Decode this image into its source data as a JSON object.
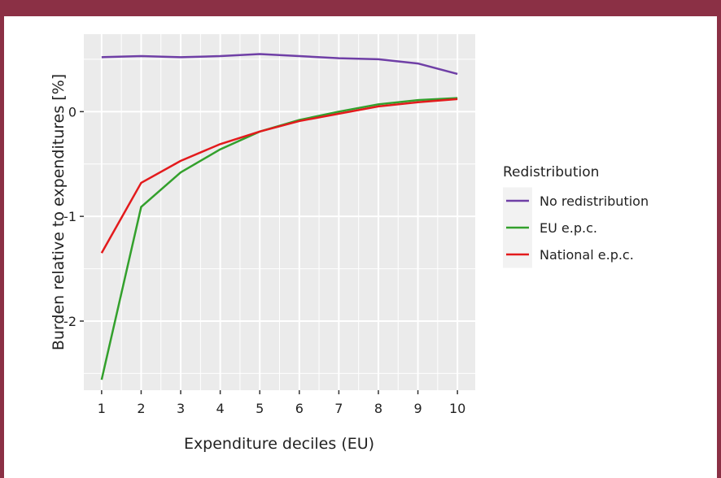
{
  "chart_data": {
    "type": "line",
    "x_label": "Expenditure deciles (EU)",
    "y_label": "Burden relative to expenditures [%]",
    "x": [
      1,
      2,
      3,
      4,
      5,
      6,
      7,
      8,
      9,
      10
    ],
    "series": [
      {
        "name": "No redistribution",
        "color": "#6f3fa6",
        "values": [
          0.52,
          0.53,
          0.52,
          0.53,
          0.55,
          0.53,
          0.51,
          0.5,
          0.46,
          0.36
        ]
      },
      {
        "name": "EU e.p.c.",
        "color": "#33a02c",
        "values": [
          -2.56,
          -0.91,
          -0.58,
          -0.36,
          -0.19,
          -0.08,
          0.0,
          0.07,
          0.11,
          0.13
        ]
      },
      {
        "name": "National e.p.c.",
        "color": "#e31a1c",
        "values": [
          -1.35,
          -0.68,
          -0.47,
          -0.31,
          -0.19,
          -0.09,
          -0.02,
          0.05,
          0.09,
          0.12
        ]
      }
    ],
    "xlim": [
      0.55,
      10.45
    ],
    "xticks": [
      1,
      2,
      3,
      4,
      5,
      6,
      7,
      8,
      9,
      10
    ],
    "ylim": [
      -2.66,
      0.74
    ],
    "yticks": [
      -2,
      -1,
      0
    ],
    "grid": true,
    "minor_grid": true,
    "legend_title": "Redistribution",
    "legend_position": "right"
  }
}
